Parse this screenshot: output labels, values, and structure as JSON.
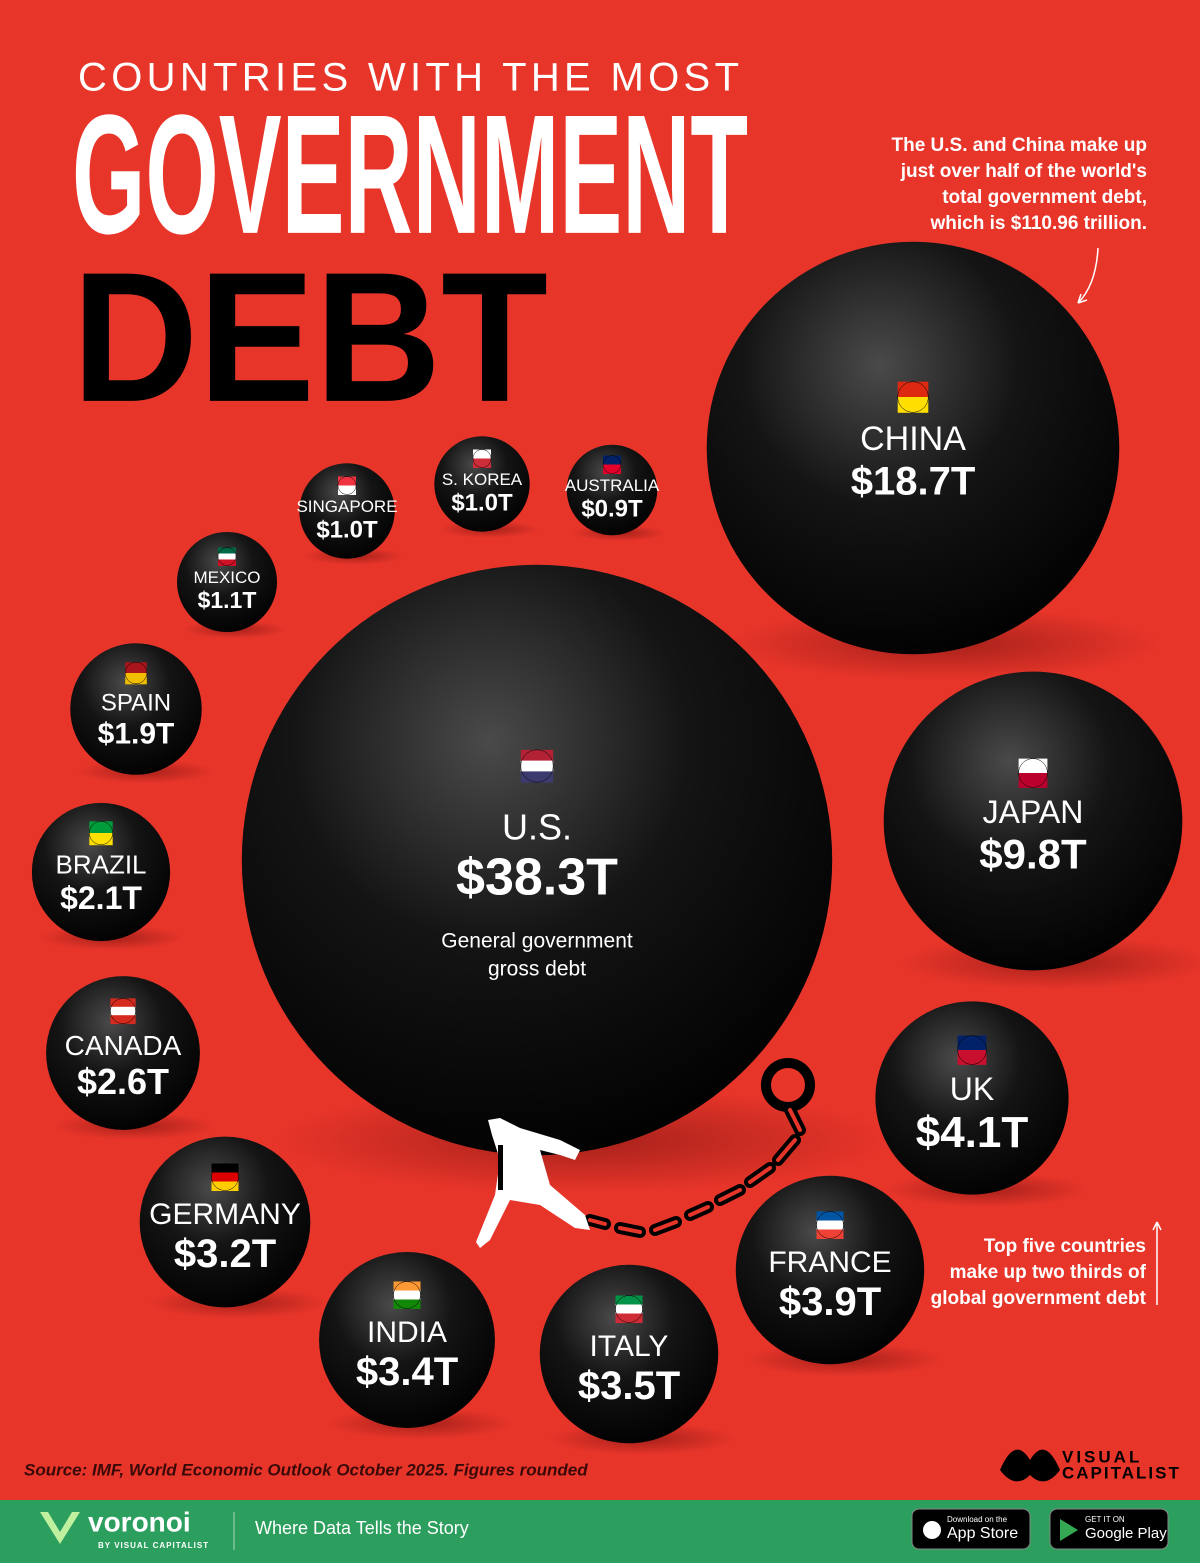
{
  "chart_data": {
    "type": "bubble",
    "supertitle": "COUNTRIES WITH THE MOST",
    "title": [
      "GOVERNMENT",
      "DEBT"
    ],
    "categories": [
      "U.S.",
      "CHINA",
      "JAPAN",
      "UK",
      "FRANCE",
      "ITALY",
      "INDIA",
      "GERMANY",
      "CANADA",
      "BRAZIL",
      "SPAIN",
      "MEXICO",
      "SINGAPORE",
      "S. KOREA",
      "AUSTRALIA"
    ],
    "values": [
      38.3,
      18.7,
      9.8,
      4.1,
      3.9,
      3.5,
      3.4,
      3.2,
      2.6,
      2.1,
      1.9,
      1.1,
      1.0,
      1.0,
      0.9
    ],
    "value_labels": [
      "$38.3T",
      "$18.7T",
      "$9.8T",
      "$4.1T",
      "$3.9T",
      "$3.5T",
      "$3.4T",
      "$3.2T",
      "$2.6T",
      "$2.1T",
      "$1.9T",
      "$1.1T",
      "$1.0T",
      "$1.0T",
      "$0.9T"
    ],
    "color": "#0a0a0a",
    "us_note": [
      "General government",
      "gross debt"
    ],
    "annotations": [
      [
        "The U.S. and China make up",
        "just over half of the world's",
        "total government debt,",
        "which is $110.96 trillion."
      ],
      [
        "Top five countries",
        "make up two thirds of",
        "global government debt"
      ]
    ],
    "source": "Source: IMF, World Economic Outlook October 2025. Figures rounded",
    "brand": [
      "VISUAL",
      "CAPITALIST"
    ],
    "footer": {
      "logo": "voronoi",
      "logo_sub": "BY VISUAL CAPITALIST",
      "tagline": "Where Data Tells the Story",
      "app_store": [
        "Download on the",
        "App Store"
      ],
      "google_play": [
        "GET IT ON",
        "Google Play"
      ]
    }
  }
}
